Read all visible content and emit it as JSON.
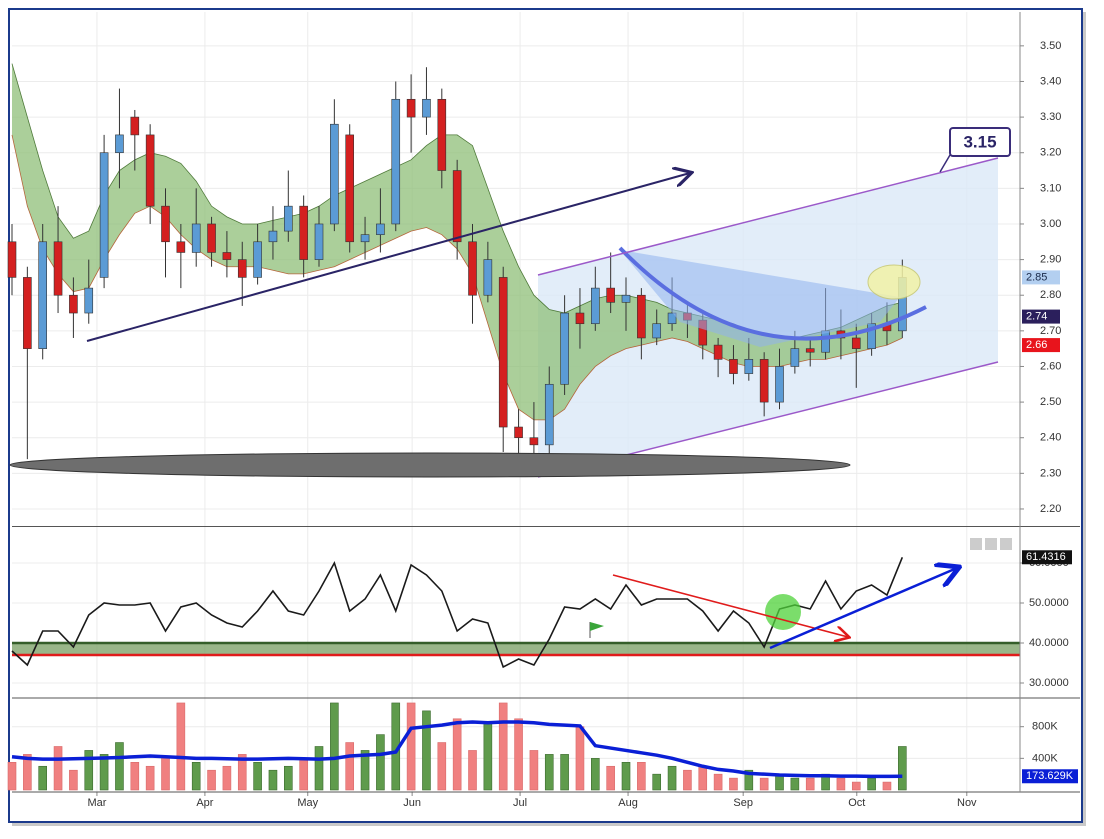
{
  "chart_data": [
    {
      "type": "candlestick",
      "x": [
        0,
        3,
        6,
        9,
        12,
        15,
        18,
        21,
        24,
        27,
        30,
        33,
        36,
        39,
        42,
        45,
        48,
        51,
        54,
        57,
        60,
        63,
        66,
        69,
        72,
        75,
        78,
        81,
        84,
        87,
        90,
        93,
        96,
        99,
        102,
        105,
        108,
        111,
        114,
        117,
        120,
        123,
        126,
        129,
        132,
        135,
        138,
        141,
        144,
        147,
        150,
        153,
        156,
        159,
        162,
        165,
        168,
        171,
        174
      ],
      "open": [
        2.95,
        2.85,
        2.65,
        2.95,
        2.8,
        2.75,
        2.85,
        3.2,
        3.3,
        3.25,
        3.05,
        2.95,
        2.92,
        3.0,
        2.92,
        2.9,
        2.85,
        2.95,
        2.98,
        3.05,
        2.9,
        3.0,
        3.25,
        2.95,
        2.97,
        3.0,
        3.35,
        3.3,
        3.35,
        3.15,
        2.95,
        2.8,
        2.85,
        2.43,
        2.4,
        2.38,
        2.55,
        2.75,
        2.72,
        2.82,
        2.78,
        2.8,
        2.68,
        2.72,
        2.75,
        2.73,
        2.66,
        2.62,
        2.58,
        2.62,
        2.5,
        2.6,
        2.65,
        2.64,
        2.7,
        2.68,
        2.65,
        2.72,
        2.7
      ],
      "high": [
        3.0,
        2.88,
        3.0,
        3.05,
        2.85,
        2.9,
        3.25,
        3.38,
        3.32,
        3.28,
        3.1,
        3.0,
        3.1,
        3.02,
        2.98,
        2.95,
        3.0,
        3.05,
        3.15,
        3.08,
        3.05,
        3.35,
        3.28,
        3.02,
        3.1,
        3.4,
        3.42,
        3.44,
        3.38,
        3.18,
        3.0,
        2.95,
        2.88,
        2.48,
        2.5,
        2.6,
        2.8,
        2.82,
        2.88,
        2.92,
        2.85,
        2.82,
        2.76,
        2.85,
        2.78,
        2.75,
        2.68,
        2.66,
        2.68,
        2.64,
        2.65,
        2.7,
        2.68,
        2.82,
        2.76,
        2.72,
        2.75,
        2.78,
        2.9
      ],
      "low": [
        2.8,
        2.34,
        2.62,
        2.75,
        2.68,
        2.72,
        2.82,
        3.1,
        3.15,
        3.0,
        2.85,
        2.82,
        2.88,
        2.88,
        2.85,
        2.77,
        2.83,
        2.9,
        2.95,
        2.85,
        2.88,
        2.98,
        2.92,
        2.9,
        2.92,
        2.98,
        3.2,
        3.25,
        3.1,
        2.9,
        2.72,
        2.78,
        2.36,
        2.34,
        2.35,
        2.29,
        2.52,
        2.65,
        2.7,
        2.75,
        2.7,
        2.62,
        2.66,
        2.7,
        2.68,
        2.62,
        2.57,
        2.55,
        2.56,
        2.46,
        2.48,
        2.58,
        2.6,
        2.62,
        2.62,
        2.54,
        2.63,
        2.66,
        2.68
      ],
      "close": [
        2.85,
        2.65,
        2.95,
        2.8,
        2.75,
        2.82,
        3.2,
        3.25,
        3.25,
        3.05,
        2.95,
        2.92,
        3.0,
        2.92,
        2.9,
        2.85,
        2.95,
        2.98,
        3.05,
        2.9,
        3.0,
        3.28,
        2.95,
        2.97,
        3.0,
        3.35,
        3.3,
        3.35,
        3.15,
        2.95,
        2.8,
        2.9,
        2.43,
        2.4,
        2.38,
        2.55,
        2.75,
        2.72,
        2.82,
        2.78,
        2.8,
        2.68,
        2.72,
        2.75,
        2.73,
        2.66,
        2.62,
        2.58,
        2.62,
        2.5,
        2.6,
        2.65,
        2.64,
        2.7,
        2.68,
        2.65,
        2.72,
        2.7,
        2.85
      ],
      "up_color": "#5b9bd5",
      "down_color": "#d42020",
      "bands": {
        "color": "#8fbf78",
        "upper": [
          3.45,
          3.3,
          3.15,
          3.02,
          2.96,
          2.98,
          3.08,
          3.15,
          3.18,
          3.2,
          3.19,
          3.17,
          3.12,
          3.05,
          3.02,
          3.0,
          3.0,
          3.01,
          3.02,
          3.03,
          3.05,
          3.08,
          3.1,
          3.12,
          3.14,
          3.16,
          3.18,
          3.22,
          3.25,
          3.25,
          3.22,
          3.1,
          2.98,
          2.88,
          2.8,
          2.76,
          2.75,
          2.77,
          2.79,
          2.8,
          2.8,
          2.79,
          2.78,
          2.76,
          2.75,
          2.74,
          2.73,
          2.72,
          2.7,
          2.69,
          2.68,
          2.68,
          2.69,
          2.7,
          2.71,
          2.73,
          2.75,
          2.77,
          2.78
        ],
        "lower": [
          3.25,
          3.05,
          2.93,
          2.86,
          2.81,
          2.82,
          2.9,
          2.97,
          3.03,
          3.05,
          3.02,
          2.97,
          2.93,
          2.9,
          2.88,
          2.88,
          2.88,
          2.87,
          2.86,
          2.86,
          2.87,
          2.88,
          2.9,
          2.92,
          2.94,
          2.96,
          2.98,
          2.99,
          2.97,
          2.93,
          2.86,
          2.72,
          2.58,
          2.48,
          2.45,
          2.45,
          2.48,
          2.55,
          2.6,
          2.63,
          2.65,
          2.66,
          2.67,
          2.68,
          2.67,
          2.65,
          2.63,
          2.61,
          2.6,
          2.6,
          2.6,
          2.61,
          2.62,
          2.62,
          2.63,
          2.64,
          2.65,
          2.66,
          2.68
        ]
      },
      "target": 3.15,
      "last_color": "#b3cff0",
      "price_markers": [
        {
          "value": 2.74,
          "color": "#2b1f5c"
        },
        {
          "value": 2.66,
          "color": "#e8141c"
        }
      ],
      "xlim": [
        0,
        197
      ],
      "ylim": [
        2.155,
        3.595
      ],
      "yticks": [
        {
          "value": 2.2,
          "label": "2.20"
        },
        {
          "value": 2.3,
          "label": "2.30"
        },
        {
          "value": 2.4,
          "label": "2.40"
        },
        {
          "value": 2.5,
          "label": "2.50"
        },
        {
          "value": 2.6,
          "label": "2.60"
        },
        {
          "value": 2.7,
          "label": "2.70"
        },
        {
          "value": 2.8,
          "label": "2.80"
        },
        {
          "value": 2.9,
          "label": "2.90"
        },
        {
          "value": 3.0,
          "label": "3.00"
        },
        {
          "value": 3.1,
          "label": "3.10"
        },
        {
          "value": 3.2,
          "label": "3.20"
        },
        {
          "value": 3.3,
          "label": "3.30"
        },
        {
          "value": 3.4,
          "label": "3.40"
        },
        {
          "value": 3.5,
          "label": "3.50"
        }
      ],
      "grid": true
    },
    {
      "type": "line",
      "x": [
        0,
        3,
        6,
        9,
        12,
        15,
        18,
        21,
        24,
        27,
        30,
        33,
        36,
        39,
        42,
        45,
        48,
        51,
        54,
        57,
        60,
        63,
        66,
        69,
        72,
        75,
        78,
        81,
        84,
        87,
        90,
        93,
        96,
        99,
        102,
        105,
        108,
        111,
        114,
        117,
        120,
        123,
        126,
        129,
        132,
        135,
        138,
        141,
        144,
        147,
        150,
        153,
        156,
        159,
        162,
        165,
        168,
        171,
        174
      ],
      "series": [
        {
          "color": "#1a1a1a",
          "values": [
            38,
            34.5,
            43,
            43,
            39,
            47,
            50,
            49.5,
            49.5,
            50,
            43,
            49,
            50,
            47,
            45,
            44,
            48,
            53,
            48,
            47,
            53,
            60,
            48,
            51,
            57,
            48,
            59.5,
            57,
            53,
            43,
            46,
            45,
            34,
            36,
            34.5,
            41,
            49,
            48.5,
            51,
            48.5,
            54.5,
            49.5,
            51,
            51,
            51,
            48,
            43,
            48,
            45,
            39,
            48.5,
            49.5,
            48.5,
            55.5,
            48.5,
            53,
            54.5,
            52,
            61.4316
          ]
        }
      ],
      "levels": [
        {
          "value": 40,
          "color": "#355e2a"
        },
        {
          "value": 37,
          "color": "#e01b1b"
        }
      ],
      "zone_color": "#7fa46c",
      "xlim": [
        0,
        197
      ],
      "ylim": [
        26.5,
        68.75
      ],
      "yticks": [
        {
          "value": 30,
          "label": "30.0000"
        },
        {
          "value": 40,
          "label": "40.0000"
        },
        {
          "value": 50,
          "label": "50.0000"
        },
        {
          "value": 60,
          "label": "60.0000"
        }
      ],
      "grid": true
    },
    {
      "type": "bar",
      "x": [
        0,
        3,
        6,
        9,
        12,
        15,
        18,
        21,
        24,
        27,
        30,
        33,
        36,
        39,
        42,
        45,
        48,
        51,
        54,
        57,
        60,
        63,
        66,
        69,
        72,
        75,
        78,
        81,
        84,
        87,
        90,
        93,
        96,
        99,
        102,
        105,
        108,
        111,
        114,
        117,
        120,
        123,
        126,
        129,
        132,
        135,
        138,
        141,
        144,
        147,
        150,
        153,
        156,
        159,
        162,
        165,
        168,
        171,
        174
      ],
      "values": [
        350000,
        450000,
        300000,
        550000,
        250000,
        500000,
        450000,
        600000,
        350000,
        300000,
        420000,
        1100000,
        350000,
        250000,
        300000,
        450000,
        350000,
        250000,
        300000,
        400000,
        550000,
        1100000,
        600000,
        500000,
        700000,
        1100000,
        1100000,
        1000000,
        600000,
        900000,
        500000,
        850000,
        1100000,
        900000,
        500000,
        450000,
        450000,
        800000,
        400000,
        300000,
        350000,
        350000,
        200000,
        300000,
        250000,
        300000,
        200000,
        150000,
        250000,
        150000,
        200000,
        150000,
        150000,
        200000,
        150000,
        100000,
        150000,
        100000,
        550000
      ],
      "up_color": "#5f9b4c",
      "down_color": "#f08080",
      "series": [
        {
          "color": "#0a1fd6",
          "last_label": "173.629K",
          "values": [
            420000,
            400000,
            390000,
            390000,
            395000,
            400000,
            405000,
            410000,
            420000,
            430000,
            420000,
            410000,
            400000,
            400000,
            395000,
            390000,
            390000,
            395000,
            400000,
            395000,
            390000,
            400000,
            430000,
            440000,
            450000,
            480000,
            780000,
            800000,
            820000,
            850000,
            860000,
            850000,
            860000,
            860000,
            850000,
            830000,
            820000,
            810000,
            560000,
            530000,
            500000,
            470000,
            440000,
            400000,
            350000,
            300000,
            260000,
            240000,
            210000,
            200000,
            190000,
            185000,
            180000,
            180000,
            175000,
            175000,
            172000,
            172000,
            173629
          ]
        }
      ],
      "xlim": [
        0,
        197
      ],
      "ylim": [
        0,
        1150000
      ],
      "yticks": [
        {
          "value": 400000,
          "label": "400K"
        },
        {
          "value": 800000,
          "label": "800K"
        }
      ],
      "xticks": [
        {
          "value": 16.6,
          "label": "Mar"
        },
        {
          "value": 37.7,
          "label": "Apr"
        },
        {
          "value": 57.8,
          "label": "May"
        },
        {
          "value": 78.2,
          "label": "Jun"
        },
        {
          "value": 99.3,
          "label": "Jul"
        },
        {
          "value": 120.4,
          "label": "Aug"
        },
        {
          "value": 142.9,
          "label": "Sep"
        },
        {
          "value": 165.1,
          "label": "Oct"
        },
        {
          "value": 186.6,
          "label": "Nov"
        }
      ],
      "grid": true
    }
  ]
}
